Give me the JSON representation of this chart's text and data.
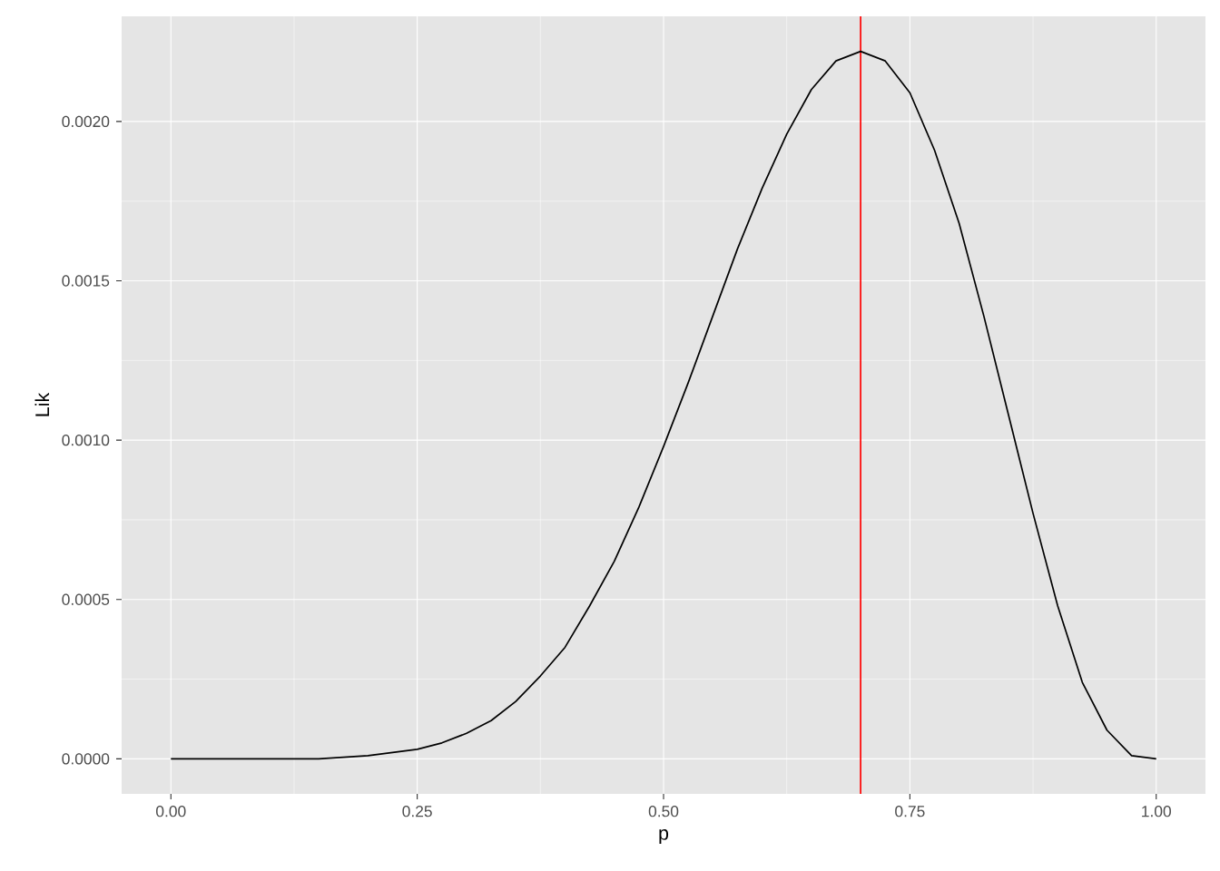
{
  "chart_data": {
    "type": "line",
    "xlabel": "p",
    "ylabel": "Lik",
    "x": [
      0,
      0.05,
      0.1,
      0.15,
      0.2,
      0.25,
      0.275,
      0.3,
      0.325,
      0.35,
      0.375,
      0.4,
      0.425,
      0.45,
      0.475,
      0.5,
      0.525,
      0.55,
      0.575,
      0.6,
      0.625,
      0.65,
      0.675,
      0.7,
      0.725,
      0.75,
      0.775,
      0.8,
      0.825,
      0.85,
      0.875,
      0.9,
      0.925,
      0.95,
      0.975,
      1.0
    ],
    "series": [
      {
        "color": "#000000",
        "values": [
          0,
          0,
          0,
          0,
          1e-05,
          3e-05,
          5e-05,
          8e-05,
          0.00012,
          0.00018,
          0.00026,
          0.00035,
          0.00048,
          0.00062,
          0.00079,
          0.00098,
          0.00118,
          0.00139,
          0.0016,
          0.00179,
          0.00196,
          0.0021,
          0.00219,
          0.00222,
          0.00219,
          0.00209,
          0.00191,
          0.00168,
          0.00139,
          0.00108,
          0.00077,
          0.00048,
          0.00024,
          9e-05,
          1e-05,
          0
        ]
      }
    ],
    "xlim": [
      -0.05,
      1.05
    ],
    "ylim": [
      -0.00011,
      0.00233
    ],
    "xticks": [
      {
        "value": 0,
        "label": "0.00"
      },
      {
        "value": 0.25,
        "label": "0.25"
      },
      {
        "value": 0.5,
        "label": "0.50"
      },
      {
        "value": 0.75,
        "label": "0.75"
      },
      {
        "value": 1,
        "label": "1.00"
      }
    ],
    "yticks": [
      {
        "value": 0,
        "label": "0.0000"
      },
      {
        "value": 0.0005,
        "label": "0.0005"
      },
      {
        "value": 0.001,
        "label": "0.0010"
      },
      {
        "value": 0.0015,
        "label": "0.0015"
      },
      {
        "value": 0.002,
        "label": "0.0020"
      }
    ],
    "grid": true,
    "marker": "none",
    "line_style": "solid",
    "ref_lines": [
      {
        "axis": "x",
        "value": 0.7,
        "color": "#ff0000"
      }
    ]
  }
}
